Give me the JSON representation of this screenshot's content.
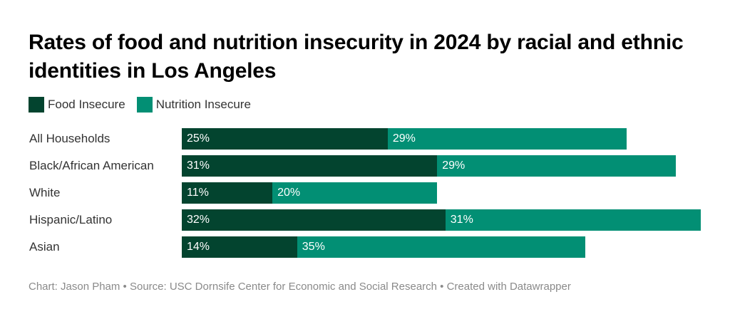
{
  "chart_data": {
    "type": "bar",
    "orientation": "horizontal",
    "stacked": true,
    "title": "Rates of food and nutrition insecurity in 2024 by racial and ethnic identities in Los Angeles",
    "xlabel": "",
    "ylabel": "",
    "xlim": [
      0,
      63
    ],
    "grid": false,
    "legend_position": "top-left",
    "categories": [
      "All Households",
      "Black/African American",
      "White",
      "Hispanic/Latino",
      "Asian"
    ],
    "series": [
      {
        "name": "Food Insecure",
        "color": "#03442f",
        "values": [
          25,
          31,
          11,
          32,
          14
        ]
      },
      {
        "name": "Nutrition Insecure",
        "color": "#028f74",
        "values": [
          29,
          29,
          20,
          31,
          35
        ]
      }
    ],
    "value_suffix": "%"
  },
  "footer": {
    "text": "Chart: Jason Pham • Source: USC Dornsife Center for Economic and Social Research • Created with Datawrapper"
  }
}
